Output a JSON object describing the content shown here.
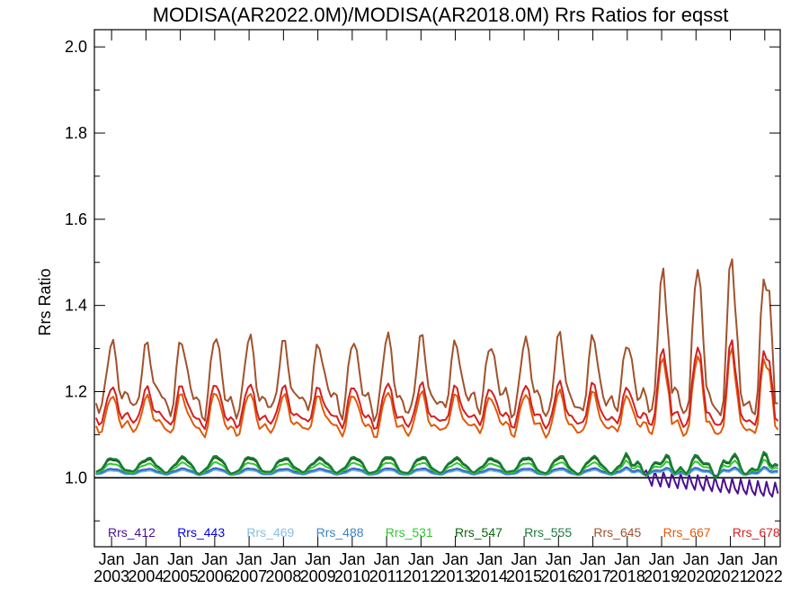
{
  "chart_data": {
    "type": "line",
    "title": "MODISA(AR2022.0M)/MODISA(AR2018.0M)  Rrs Ratios for eqsst",
    "xlabel": "",
    "ylabel": "Rrs Ratio",
    "ylim": [
      0.84,
      2.04
    ],
    "xlim": [
      2002.5,
      2022.45
    ],
    "yticks": [
      1.0,
      1.2,
      1.4,
      1.6,
      1.8,
      2.0
    ],
    "ytick_labels": [
      "1.0",
      "1.2",
      "1.4",
      "1.6",
      "1.8",
      "2.0"
    ],
    "x_ticks": [
      {
        "month": "Jan",
        "year": "2003"
      },
      {
        "month": "Jan",
        "year": "2004"
      },
      {
        "month": "Jan",
        "year": "2005"
      },
      {
        "month": "Jan",
        "year": "2006"
      },
      {
        "month": "Jan",
        "year": "2007"
      },
      {
        "month": "Jan",
        "year": "2008"
      },
      {
        "month": "Jan",
        "year": "2009"
      },
      {
        "month": "Jan",
        "year": "2010"
      },
      {
        "month": "Jan",
        "year": "2011"
      },
      {
        "month": "Jan",
        "year": "2012"
      },
      {
        "month": "Jan",
        "year": "2013"
      },
      {
        "month": "Jan",
        "year": "2014"
      },
      {
        "month": "Jan",
        "year": "2015"
      },
      {
        "month": "Jan",
        "year": "2016"
      },
      {
        "month": "Jan",
        "year": "2017"
      },
      {
        "month": "Jan",
        "year": "2018"
      },
      {
        "month": "Jan",
        "year": "2019"
      },
      {
        "month": "Jan",
        "year": "2020"
      },
      {
        "month": "Jan",
        "year": "2021"
      },
      {
        "month": "Jan",
        "year": "2022"
      }
    ],
    "reference_line": 1.0,
    "legend_position": "bottom",
    "series": [
      {
        "name": "Rrs_412",
        "color": "#4b0f8f",
        "profile": "flat",
        "base": 1.015,
        "amp": 0.006,
        "late_dip": true
      },
      {
        "name": "Rrs_443",
        "color": "#0000e6",
        "profile": "flat",
        "base": 1.015,
        "amp": 0.006,
        "late_dip": false
      },
      {
        "name": "Rrs_469",
        "color": "#87bfe6",
        "profile": "flat",
        "base": 1.012,
        "amp": 0.005,
        "late_dip": false
      },
      {
        "name": "Rrs_488",
        "color": "#3c84c8",
        "profile": "flat",
        "base": 1.014,
        "amp": 0.006,
        "late_dip": false
      },
      {
        "name": "Rrs_531",
        "color": "#2ec82e",
        "profile": "flat",
        "base": 1.022,
        "amp": 0.012,
        "late_dip": false
      },
      {
        "name": "Rrs_547",
        "color": "#0a640a",
        "profile": "flat",
        "base": 1.028,
        "amp": 0.016,
        "late_dip": false
      },
      {
        "name": "Rrs_555",
        "color": "#1e7a3c",
        "profile": "flat",
        "base": 1.03,
        "amp": 0.018,
        "late_dip": false
      },
      {
        "name": "Rrs_645",
        "color": "#a0522d",
        "profile": "peaky",
        "base": 1.22,
        "amp": 0.13,
        "late_dip": false
      },
      {
        "name": "Rrs_667",
        "color": "#e05a0a",
        "profile": "peaky",
        "base": 1.14,
        "amp": 0.07,
        "late_dip": false
      },
      {
        "name": "Rrs_678",
        "color": "#d42020",
        "profile": "peaky",
        "base": 1.16,
        "amp": 0.07,
        "late_dip": false
      }
    ]
  }
}
